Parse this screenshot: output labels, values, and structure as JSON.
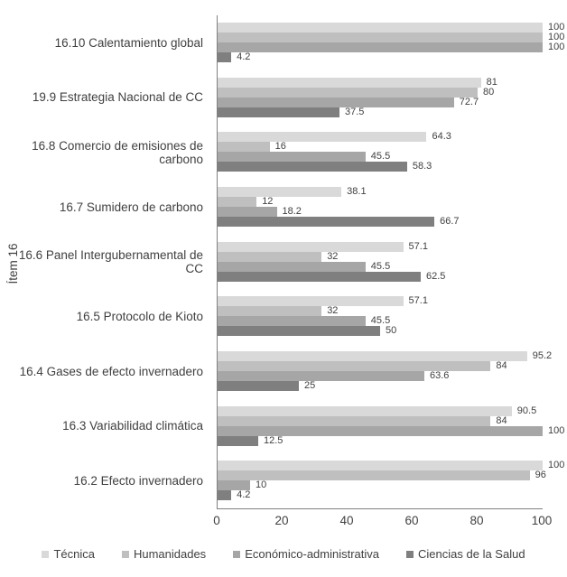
{
  "chart_data": {
    "type": "bar",
    "orientation": "horizontal",
    "title": "",
    "ylabel": "Ítem 16",
    "xlabel": "",
    "xlim": [
      0,
      100
    ],
    "x_ticks": [
      0,
      20,
      40,
      60,
      80,
      100
    ],
    "grid": false,
    "legend_position": "bottom",
    "value_labels": true,
    "axis_color": "#808080",
    "text_color": "#404040",
    "categories": [
      "16.10 Calentamiento global",
      "19.9 Estrategia Nacional de CC",
      "16.8 Comercio de emisiones de carbono",
      "16.7 Sumidero de carbono",
      "16.6 Panel Intergubernamental de CC",
      "16.5 Protocolo de Kioto",
      "16.4 Gases de efecto invernadero",
      "16.3 Variabilidad climática",
      "16.2 Efecto invernadero"
    ],
    "series": [
      {
        "name": "Técnica",
        "color": "#d9d9d9",
        "values": [
          100,
          81,
          64.3,
          38.1,
          57.1,
          57.1,
          95.2,
          90.5,
          100
        ]
      },
      {
        "name": "Humanidades",
        "color": "#bfbfbf",
        "values": [
          100,
          80,
          16,
          12,
          32,
          32,
          84,
          84,
          96
        ]
      },
      {
        "name": "Económico-administrativa",
        "color": "#a6a6a6",
        "values": [
          100,
          72.7,
          45.5,
          18.2,
          45.5,
          45.5,
          63.6,
          100,
          10
        ]
      },
      {
        "name": "Ciencias de la Salud",
        "color": "#7f7f7f",
        "values": [
          4.2,
          37.5,
          58.3,
          66.7,
          62.5,
          50,
          25,
          12.5,
          4.2
        ]
      }
    ]
  }
}
